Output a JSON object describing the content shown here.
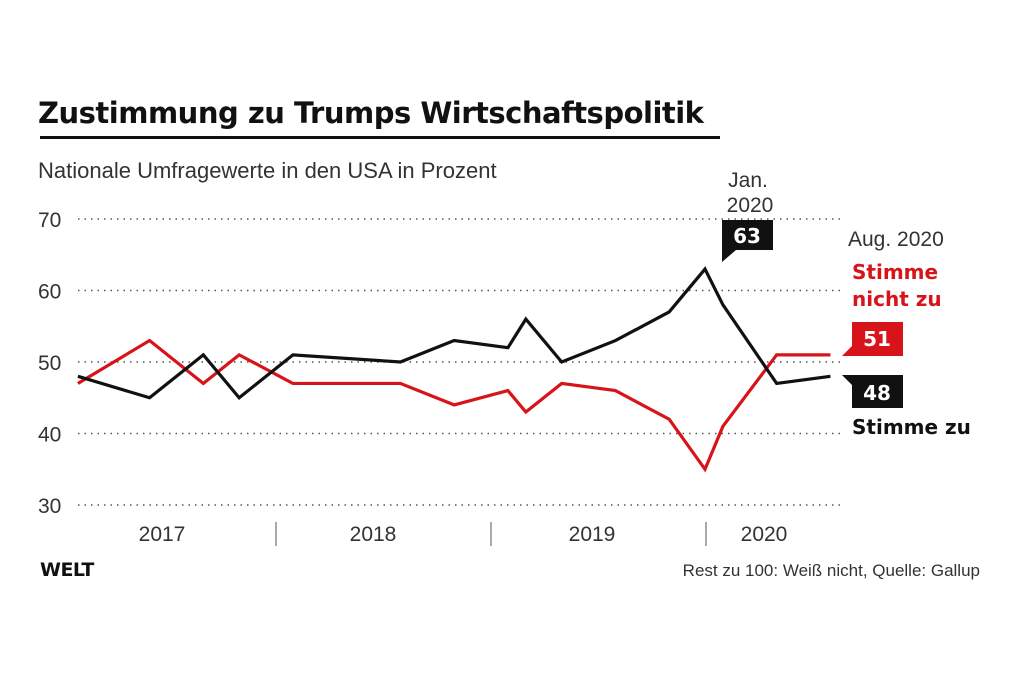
{
  "title": "Zustimmung zu Trumps Wirtschaftspolitik",
  "subtitle": "Nationale Umfragewerte in den USA in Prozent",
  "logo": "WELT",
  "source": "Rest zu 100: Weiß nicht, Quelle: Gallup",
  "colors": {
    "approve": "#111111",
    "disapprove": "#d7141a",
    "grid": "#555555"
  },
  "chart_data": {
    "type": "line",
    "title": "Zustimmung zu Trumps Wirtschaftspolitik",
    "subtitle": "Nationale Umfragewerte in den USA in Prozent",
    "ylim": [
      30,
      70
    ],
    "yticks": [
      30,
      40,
      50,
      60,
      70
    ],
    "grid": "horizontal dotted",
    "xlabels": [
      "2017",
      "2018",
      "2019",
      "2020"
    ],
    "x": [
      "2017-02",
      "2017-06",
      "2017-09",
      "2017-11",
      "2018-02",
      "2018-08",
      "2018-11",
      "2019-02",
      "2019-03",
      "2019-05",
      "2019-08",
      "2019-11",
      "2020-01",
      "2020-02",
      "2020-05",
      "2020-08"
    ],
    "series": [
      {
        "name": "Stimme zu",
        "color": "#111111",
        "values": [
          48,
          45,
          51,
          45,
          51,
          50,
          53,
          52,
          56,
          50,
          53,
          57,
          63,
          58,
          47,
          48
        ]
      },
      {
        "name": "Stimme nicht zu",
        "color": "#d7141a",
        "values": [
          47,
          53,
          47,
          51,
          47,
          47,
          44,
          46,
          43,
          47,
          46,
          42,
          35,
          41,
          51,
          51
        ]
      }
    ],
    "annotations": [
      {
        "label": "Jan. 2020",
        "line1": "Jan.",
        "line2": "2020",
        "value": "63"
      },
      {
        "label": "Aug. 2020",
        "approve_value": "48",
        "disapprove_value": "51"
      }
    ]
  }
}
